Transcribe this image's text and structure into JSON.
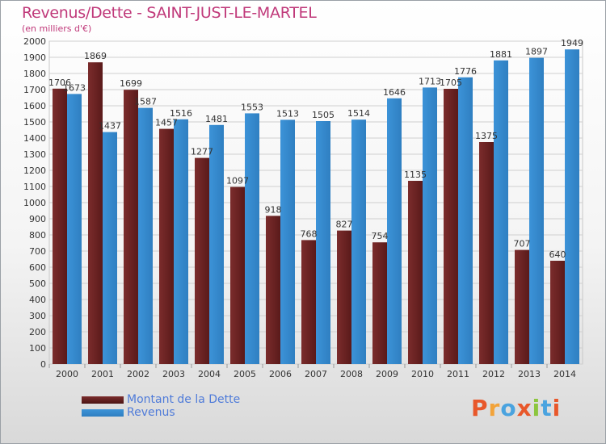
{
  "header": {
    "title": "Revenus/Dette - SAINT-JUST-LE-MARTEL",
    "subtitle": "(en milliers d'€)"
  },
  "logo": {
    "text": "Proxiti",
    "colors": [
      "#e8572a",
      "#f2a33a",
      "#4aa3df",
      "#e8572a",
      "#8cc63f",
      "#4aa3df",
      "#e8572a"
    ]
  },
  "chart_data": {
    "type": "bar",
    "categories": [
      "2000",
      "2001",
      "2002",
      "2003",
      "2004",
      "2005",
      "2006",
      "2007",
      "2008",
      "2009",
      "2010",
      "2011",
      "2012",
      "2013",
      "2014"
    ],
    "series": [
      {
        "name": "Montant de la Dette",
        "color": "#7b2c2c",
        "values": [
          1706,
          1869,
          1699,
          1457,
          1277,
          1097,
          918,
          768,
          827,
          754,
          1135,
          1705,
          1375,
          707,
          640
        ],
        "labels": [
          "1706",
          "1869",
          "1699",
          "1457",
          "1277",
          "1097",
          "918",
          "768",
          "827",
          "754",
          "1135",
          "1705",
          "1375",
          "707",
          "640"
        ]
      },
      {
        "name": "Revenus",
        "color": "#3c93d8",
        "values": [
          1673,
          1437,
          1587,
          1516,
          1481,
          1553,
          1513,
          1505,
          1514,
          1646,
          1713,
          1776,
          1881,
          1897,
          1949
        ],
        "labels": [
          "1673",
          "1437",
          "1587",
          "1516",
          "1481",
          "1553",
          "1513",
          "1505",
          "1514",
          "1646",
          "1713",
          "1776",
          "1881",
          "1897",
          "1949"
        ]
      }
    ],
    "ylim": [
      0,
      2000
    ],
    "yticks": [
      0,
      100,
      200,
      300,
      400,
      500,
      600,
      700,
      800,
      900,
      1000,
      1100,
      1200,
      1300,
      1400,
      1500,
      1600,
      1700,
      1800,
      1900,
      2000
    ],
    "grid": true,
    "legend": "bottom-left"
  }
}
